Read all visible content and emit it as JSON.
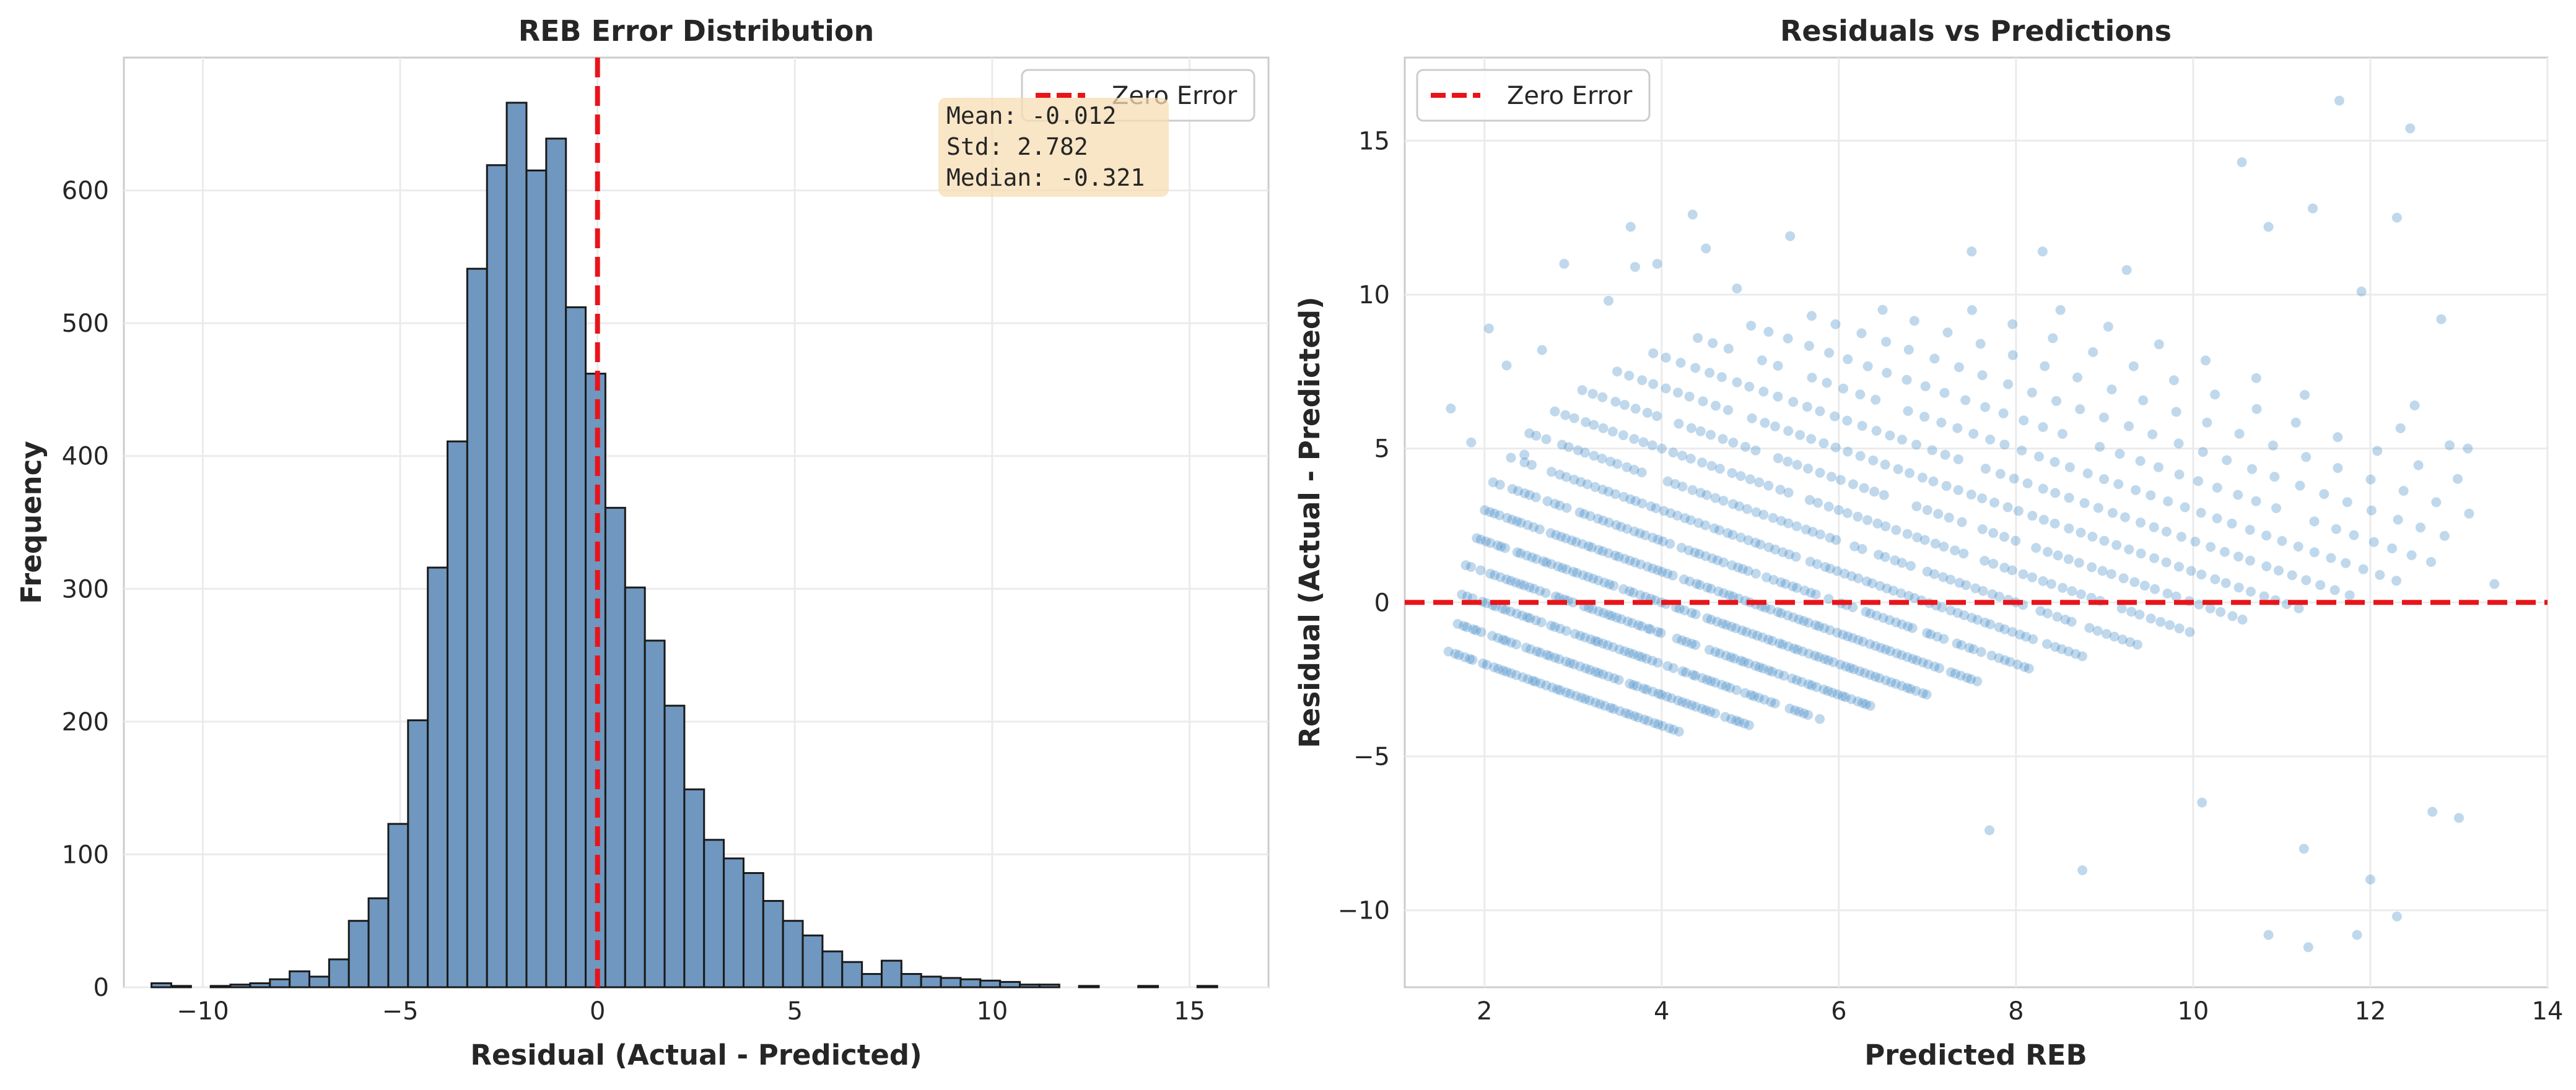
{
  "chart_data": [
    {
      "type": "bar",
      "title": "REB Error Distribution",
      "xlabel": "Residual (Actual - Predicted)",
      "ylabel": "Frequency",
      "xlim": [
        -12.0,
        17.0
      ],
      "ylim": [
        0,
        700
      ],
      "xticks": [
        -10,
        -5,
        0,
        5,
        10,
        15
      ],
      "xtick_labels": [
        "−10",
        "−5",
        "0",
        "5",
        "10",
        "15"
      ],
      "yticks": [
        0,
        100,
        200,
        300,
        400,
        500,
        600
      ],
      "ytick_labels": [
        "0",
        "100",
        "200",
        "300",
        "400",
        "500",
        "600"
      ],
      "grid": true,
      "bin_edges": [
        -11.3,
        -10.8,
        -10.3,
        -9.8,
        -9.3,
        -8.8,
        -8.3,
        -7.8,
        -7.3,
        -6.8,
        -6.3,
        -5.8,
        -5.3,
        -4.8,
        -4.3,
        -3.8,
        -3.3,
        -2.8,
        -2.3,
        -1.8,
        -1.3,
        -0.8,
        -0.3,
        0.2,
        0.7,
        1.2,
        1.7,
        2.2,
        2.7,
        3.2,
        3.7,
        4.2,
        4.7,
        5.2,
        5.7,
        6.2,
        6.7,
        7.2,
        7.7,
        8.2,
        8.7,
        9.2,
        9.7,
        10.2,
        10.7,
        11.2,
        11.7,
        12.2,
        12.7,
        13.2,
        13.7,
        14.2,
        14.7,
        15.2,
        15.7,
        16.2
      ],
      "values": [
        3,
        1,
        0,
        1,
        2,
        3,
        6,
        12,
        8,
        21,
        50,
        67,
        123,
        201,
        316,
        411,
        541,
        619,
        666,
        615,
        639,
        512,
        462,
        361,
        301,
        261,
        212,
        149,
        111,
        97,
        86,
        65,
        50,
        39,
        27,
        19,
        10,
        20,
        10,
        8,
        7,
        6,
        5,
        4,
        2,
        2,
        0,
        1,
        0,
        0,
        1,
        0,
        0,
        1,
        0
      ],
      "bar_color": "#6f97bf",
      "vline": {
        "x": 0,
        "color": "#e8141a",
        "style": "dashed",
        "label": "Zero Error"
      },
      "legend": {
        "position": "upper-right",
        "entries": [
          "Zero Error"
        ]
      },
      "stats": {
        "lines": [
          "Mean: -0.012",
          "Std: 2.782",
          "Median: -0.321"
        ],
        "position": "upper-right",
        "background": "#f5deb3"
      }
    },
    {
      "type": "scatter",
      "title": "Residuals vs Predictions",
      "xlabel": "Predicted REB",
      "ylabel": "Residual (Actual - Predicted)",
      "xlim": [
        1.1,
        14.0
      ],
      "ylim": [
        -12.5,
        17.7
      ],
      "xticks": [
        2,
        4,
        6,
        8,
        10,
        12,
        14
      ],
      "xtick_labels": [
        "2",
        "4",
        "6",
        "8",
        "10",
        "12",
        "14"
      ],
      "yticks": [
        -10,
        -5,
        0,
        5,
        10,
        15
      ],
      "ytick_labels": [
        "−10",
        "−5",
        "0",
        "5",
        "10",
        "15"
      ],
      "grid": true,
      "point_color": "#2f7fbf",
      "point_alpha": 0.3,
      "hline": {
        "y": 0,
        "color": "#e8141a",
        "style": "dashed",
        "label": "Zero Error"
      },
      "legend": {
        "position": "upper-left",
        "entries": [
          "Zero Error"
        ]
      },
      "bands": [
        {
          "actual": 0,
          "x_from": 1.6,
          "x_to": 4.2,
          "density": 1.0
        },
        {
          "actual": 1,
          "x_from": 1.7,
          "x_to": 5.0,
          "density": 1.0
        },
        {
          "actual": 2,
          "x_from": 1.7,
          "x_to": 5.8,
          "density": 1.0
        },
        {
          "actual": 3,
          "x_from": 1.8,
          "x_to": 6.4,
          "density": 1.0
        },
        {
          "actual": 4,
          "x_from": 1.9,
          "x_to": 7.0,
          "density": 0.95
        },
        {
          "actual": 5,
          "x_from": 2.0,
          "x_to": 7.6,
          "density": 0.9
        },
        {
          "actual": 6,
          "x_from": 2.1,
          "x_to": 8.2,
          "density": 0.8
        },
        {
          "actual": 7,
          "x_from": 2.3,
          "x_to": 8.8,
          "density": 0.7
        },
        {
          "actual": 8,
          "x_from": 2.5,
          "x_to": 9.4,
          "density": 0.6
        },
        {
          "actual": 9,
          "x_from": 2.8,
          "x_to": 10.0,
          "density": 0.5
        },
        {
          "actual": 10,
          "x_from": 3.1,
          "x_to": 10.6,
          "density": 0.45
        },
        {
          "actual": 11,
          "x_from": 3.5,
          "x_to": 11.2,
          "density": 0.4
        },
        {
          "actual": 12,
          "x_from": 3.9,
          "x_to": 11.8,
          "density": 0.35
        },
        {
          "actual": 13,
          "x_from": 4.4,
          "x_to": 12.4,
          "density": 0.3
        },
        {
          "actual": 14,
          "x_from": 5.0,
          "x_to": 12.8,
          "density": 0.25
        },
        {
          "actual": 15,
          "x_from": 5.7,
          "x_to": 13.1,
          "density": 0.2
        },
        {
          "actual": 16,
          "x_from": 6.5,
          "x_to": 13.3,
          "density": 0.15
        },
        {
          "actual": 17,
          "x_from": 7.5,
          "x_to": 13.4,
          "density": 0.12
        },
        {
          "actual": 18,
          "x_from": 8.5,
          "x_to": 13.4,
          "density": 0.1
        }
      ],
      "outliers": [
        {
          "x": 1.62,
          "y": 6.3
        },
        {
          "x": 1.85,
          "y": 5.2
        },
        {
          "x": 2.05,
          "y": 8.9
        },
        {
          "x": 2.25,
          "y": 7.7
        },
        {
          "x": 2.45,
          "y": 4.8
        },
        {
          "x": 2.65,
          "y": 8.2
        },
        {
          "x": 2.9,
          "y": 11.0
        },
        {
          "x": 3.4,
          "y": 9.8
        },
        {
          "x": 3.65,
          "y": 12.2
        },
        {
          "x": 3.7,
          "y": 10.9
        },
        {
          "x": 3.95,
          "y": 11.0
        },
        {
          "x": 4.35,
          "y": 12.6
        },
        {
          "x": 4.5,
          "y": 11.5
        },
        {
          "x": 4.85,
          "y": 10.2
        },
        {
          "x": 5.45,
          "y": 11.9
        },
        {
          "x": 7.5,
          "y": 11.4
        },
        {
          "x": 8.3,
          "y": 11.4
        },
        {
          "x": 9.25,
          "y": 10.8
        },
        {
          "x": 10.55,
          "y": 14.3
        },
        {
          "x": 10.85,
          "y": 12.2
        },
        {
          "x": 11.35,
          "y": 12.8
        },
        {
          "x": 11.65,
          "y": 16.3
        },
        {
          "x": 12.3,
          "y": 12.5
        },
        {
          "x": 12.45,
          "y": 15.4
        },
        {
          "x": 12.8,
          "y": 9.2
        },
        {
          "x": 11.9,
          "y": 10.1
        },
        {
          "x": 8.75,
          "y": -8.7
        },
        {
          "x": 10.85,
          "y": -10.8
        },
        {
          "x": 11.3,
          "y": -11.2
        },
        {
          "x": 11.85,
          "y": -10.8
        },
        {
          "x": 12.3,
          "y": -10.2
        },
        {
          "x": 12.0,
          "y": -9.0
        },
        {
          "x": 11.25,
          "y": -8.0
        },
        {
          "x": 12.7,
          "y": -6.8
        },
        {
          "x": 13.0,
          "y": -7.0
        },
        {
          "x": 7.7,
          "y": -7.4
        },
        {
          "x": 10.1,
          "y": -6.5
        },
        {
          "x": 13.4,
          "y": 0.6
        },
        {
          "x": 13.1,
          "y": 5.0
        },
        {
          "x": 12.5,
          "y": 6.4
        }
      ]
    }
  ]
}
